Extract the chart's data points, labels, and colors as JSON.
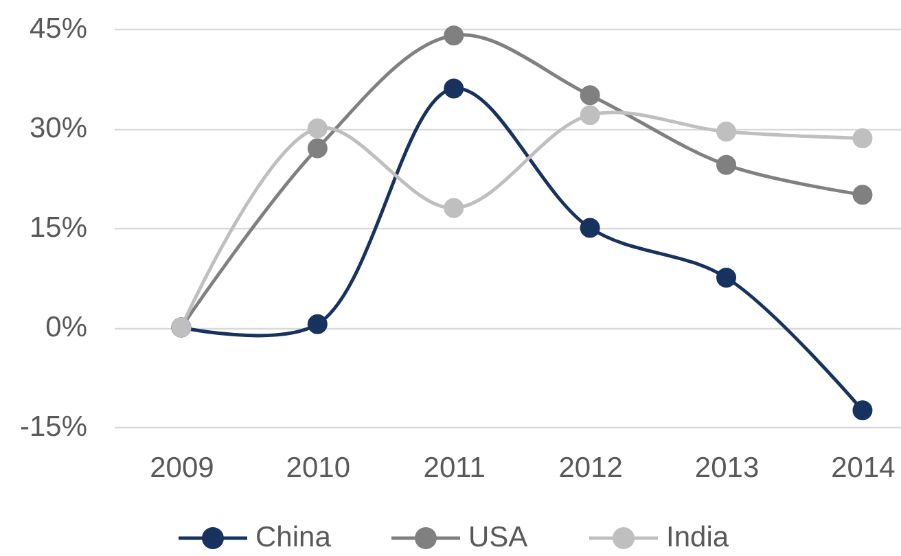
{
  "chart_data": {
    "type": "line",
    "categories": [
      "2009",
      "2010",
      "2011",
      "2012",
      "2013",
      "2014"
    ],
    "series": [
      {
        "name": "China",
        "color": "#17325e",
        "values": [
          0,
          0.5,
          36,
          15,
          7.5,
          -12.5
        ]
      },
      {
        "name": "USA",
        "color": "#808080",
        "values": [
          0,
          27,
          44,
          35,
          24.5,
          20
        ]
      },
      {
        "name": "India",
        "color": "#bfbfbf",
        "values": [
          0,
          30,
          18,
          32,
          29.5,
          28.5
        ]
      }
    ],
    "ylim": [
      -15,
      45
    ],
    "yticks": [
      {
        "value": -15,
        "label": "-15%"
      },
      {
        "value": 0,
        "label": "0%"
      },
      {
        "value": 15,
        "label": "15%"
      },
      {
        "value": 30,
        "label": "30%"
      },
      {
        "value": 45,
        "label": "45%"
      }
    ],
    "grid": "y",
    "legend": "bottom",
    "marker": "circle",
    "line_style": "solid"
  }
}
